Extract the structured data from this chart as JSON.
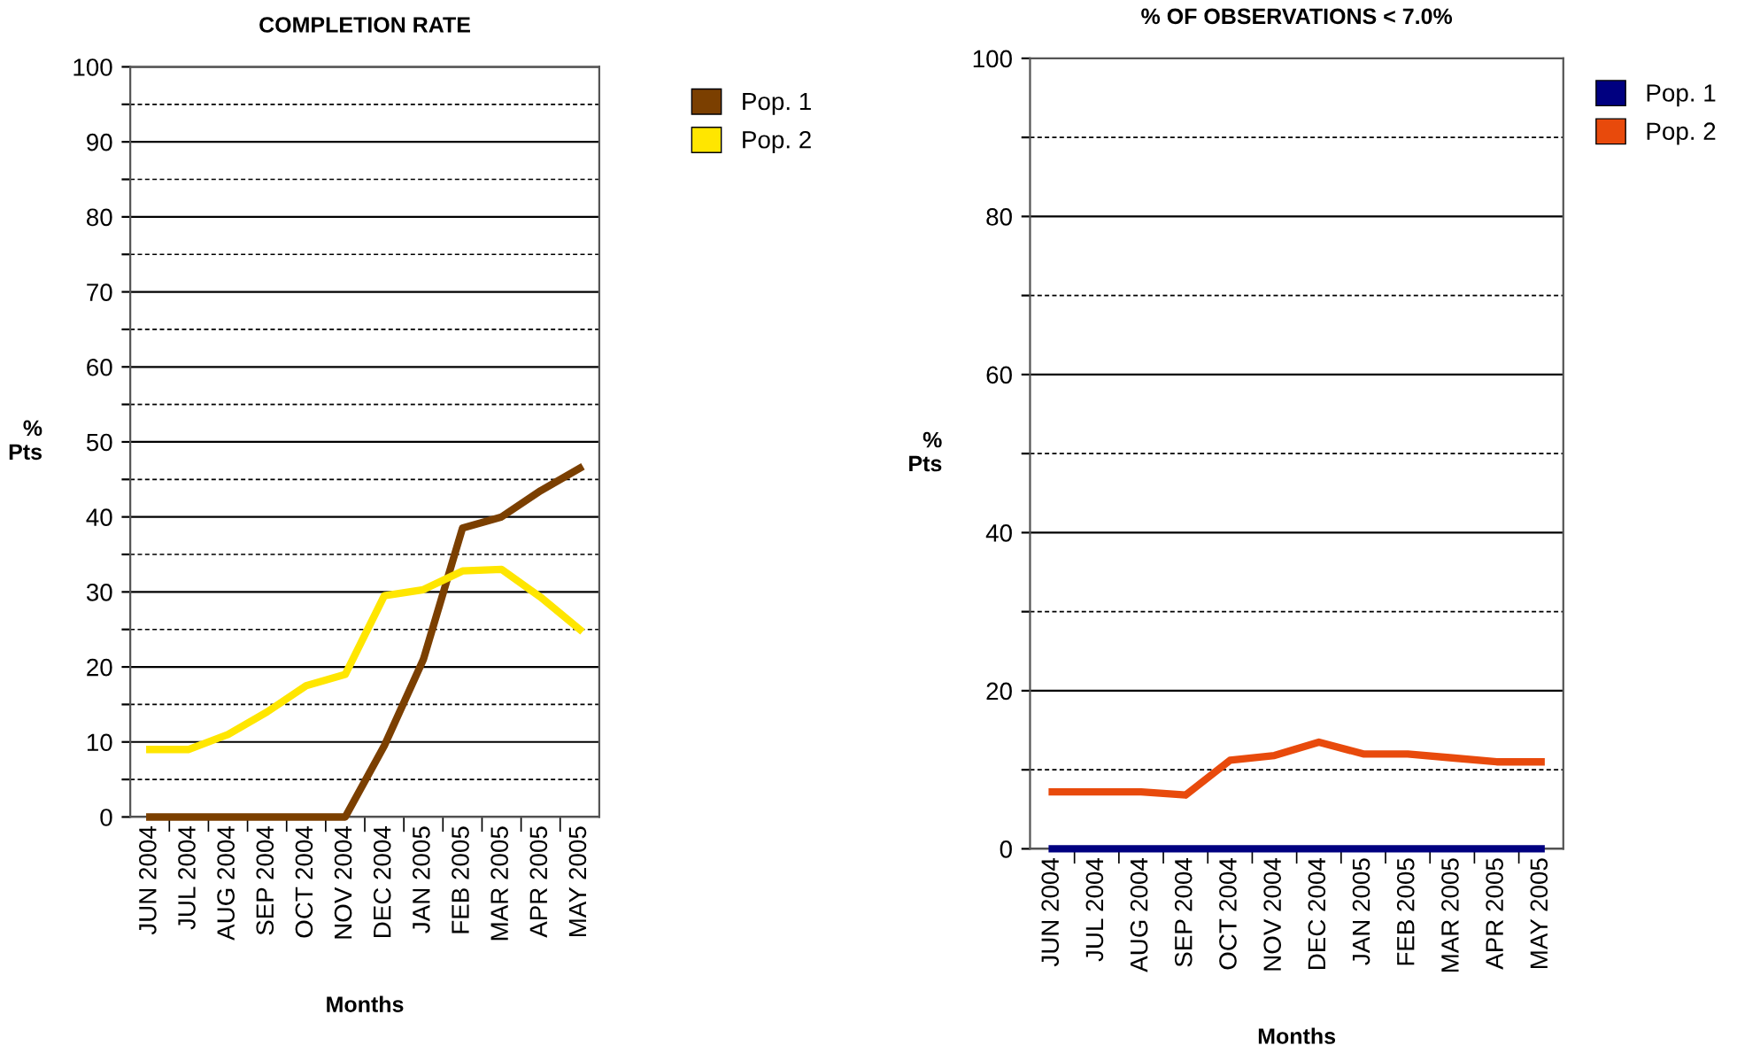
{
  "chart_data": [
    {
      "type": "line",
      "title": "COMPLETION RATE",
      "xlabel": "Months",
      "ylabel": "%\nPts",
      "categories": [
        "JUN 2004",
        "JUL 2004",
        "AUG 2004",
        "SEP 2004",
        "OCT 2004",
        "NOV 2004",
        "DEC 2004",
        "JAN 2005",
        "FEB 2005",
        "MAR 2005",
        "APR 2005",
        "MAY 2005"
      ],
      "series": [
        {
          "name": "Pop. 1",
          "color": "#7b3f00",
          "values": [
            0,
            0,
            0,
            0,
            0,
            0,
            9.5,
            21,
            38.5,
            40,
            43.5,
            46.5
          ]
        },
        {
          "name": "Pop. 2",
          "color": "#ffe600",
          "values": [
            9,
            9,
            11,
            14,
            17.5,
            19,
            29.5,
            30.3,
            32.8,
            33,
            29.3,
            25
          ]
        }
      ],
      "ylim": [
        0,
        100
      ],
      "yticks": [
        0,
        {
          "value": 5,
          "label": null
        },
        10,
        {
          "value": 15,
          "label": null
        },
        20,
        {
          "value": 25,
          "label": null
        },
        30,
        {
          "value": 35,
          "label": null
        },
        40,
        {
          "value": 45,
          "label": null
        },
        50,
        {
          "value": 55,
          "label": null
        },
        60,
        {
          "value": 65,
          "label": null
        },
        70,
        {
          "value": 75,
          "label": null
        },
        80,
        {
          "value": 85,
          "label": null
        },
        90,
        {
          "value": 95,
          "label": null
        },
        100
      ],
      "grid": "y",
      "legend": "top right",
      "marker": "none",
      "line_style": "solid"
    },
    {
      "type": "line",
      "title": "% OF OBSERVATIONS < 7.0%",
      "xlabel": "Months",
      "ylabel": "%\nPts",
      "categories": [
        "JUN 2004",
        "JUL 2004",
        "AUG 2004",
        "SEP 2004",
        "OCT 2004",
        "NOV 2004",
        "DEC 2004",
        "JAN 2005",
        "FEB 2005",
        "MAR 2005",
        "APR 2005",
        "MAY 2005"
      ],
      "series": [
        {
          "name": "Pop. 1",
          "color": "#000080",
          "values": [
            0,
            0,
            0,
            0,
            0,
            0,
            0,
            0,
            0,
            0,
            0,
            0
          ]
        },
        {
          "name": "Pop. 2",
          "color": "#e84a0c",
          "values": [
            7.2,
            7.2,
            7.2,
            6.8,
            11.2,
            11.8,
            13.5,
            12,
            12,
            11.5,
            11,
            11
          ]
        }
      ],
      "ylim": [
        0,
        100
      ],
      "yticks": [
        0,
        {
          "value": 10,
          "label": null
        },
        20,
        {
          "value": 30,
          "label": null
        },
        40,
        {
          "value": 50,
          "label": null
        },
        60,
        {
          "value": 70,
          "label": null
        },
        80,
        {
          "value": 90,
          "label": null
        },
        100
      ],
      "grid": "y",
      "legend": "top right",
      "marker": "none",
      "line_style": "solid"
    }
  ]
}
